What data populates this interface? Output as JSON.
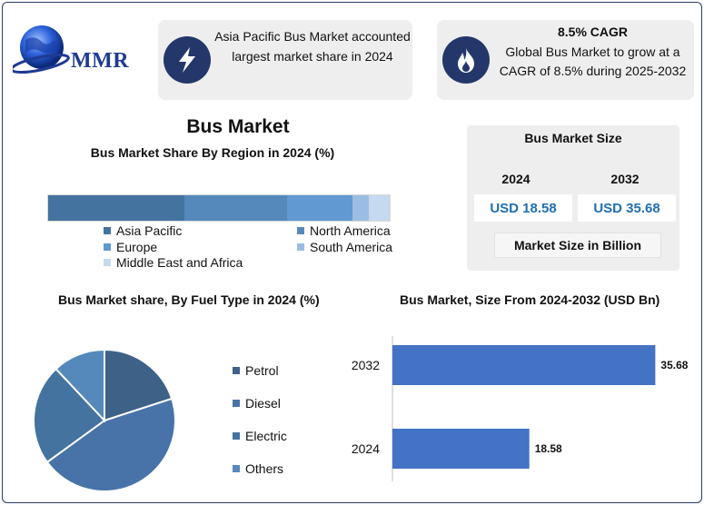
{
  "brand": {
    "logo_text": "MMR"
  },
  "cards": [
    {
      "icon": "lightning-bolt-icon",
      "text": "Asia Pacific Bus Market accounted largest market share in 2024"
    },
    {
      "icon": "flame-icon",
      "title": "8.5% CAGR",
      "text": "Global Bus Market to grow at a CAGR of 8.5% during 2025-2032"
    }
  ],
  "colors": {
    "dark_navy": "#24376b",
    "bar_blue": "#4472c4"
  },
  "market_size": {
    "title": "Bus Market Size",
    "year_2024": "2024",
    "year_2032": "2032",
    "value_2024": "USD 18.58",
    "value_2032": "USD 35.68",
    "unit_note": "Market Size in Billion"
  },
  "chart_data": [
    {
      "type": "bar",
      "orientation": "horizontal-stacked",
      "title": "Bus Market",
      "subtitle": "Bus Market Share By Region in 2024 (%)",
      "categories": [
        "Asia Pacific",
        "North America",
        "Europe",
        "South America",
        "Middle East and Africa"
      ],
      "values": [
        40,
        30,
        19,
        5,
        6
      ],
      "colors": [
        "#44739f",
        "#5589bb",
        "#6199d2",
        "#9bbde2",
        "#c5d9ef"
      ],
      "legend": "bottom"
    },
    {
      "type": "pie",
      "title": "Bus Market share, By Fuel Type in 2024  (%)",
      "categories": [
        "Petrol",
        "Diesel",
        "Electric",
        "Others"
      ],
      "values": [
        20,
        45,
        23,
        12
      ],
      "colors": [
        "#3e6187",
        "#4873a9",
        "#44739f",
        "#5589bb"
      ],
      "legend": "right"
    },
    {
      "type": "bar",
      "orientation": "horizontal",
      "title": "Bus Market, Size From 2024-2032 (USD Bn)",
      "categories": [
        "2032",
        "2024"
      ],
      "values": [
        35.68,
        18.58
      ],
      "data_labels": [
        "35.68",
        "18.58"
      ],
      "xlim": [
        0,
        36
      ],
      "color": "#4472c4"
    }
  ]
}
